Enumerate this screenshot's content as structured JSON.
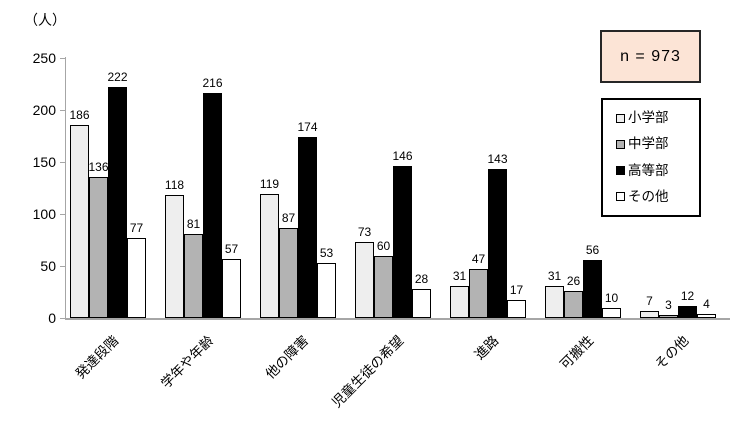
{
  "chart_data": {
    "type": "bar",
    "title": "",
    "unit_label": "（人）",
    "annotation": "n = 973",
    "categories": [
      "発達段階",
      "学年や年齢",
      "他の障害",
      "児童生徒の希望",
      "進路",
      "可搬性",
      "その他"
    ],
    "series": [
      {
        "name": "小学部",
        "color": "#eeeeee",
        "values": [
          186,
          118,
          119,
          73,
          31,
          31,
          7
        ]
      },
      {
        "name": "中学部",
        "color": "#b3b3b3",
        "values": [
          136,
          81,
          87,
          60,
          47,
          26,
          3
        ]
      },
      {
        "name": "高等部",
        "color": "#000000",
        "values": [
          222,
          216,
          174,
          146,
          143,
          56,
          12
        ]
      },
      {
        "name": "その他",
        "color": "#ffffff",
        "values": [
          77,
          57,
          53,
          28,
          17,
          10,
          4
        ]
      }
    ],
    "y_axis": {
      "min": 0,
      "max": 250,
      "step": 50,
      "tick_labels": [
        "0",
        "50",
        "100",
        "150",
        "200",
        "250"
      ]
    },
    "legend_position": "right",
    "grid": false,
    "data_labels": true,
    "colors": {
      "annotation_bg": "#fce4d6",
      "axis": "#a6a6a6",
      "bar_border": "#000000"
    }
  }
}
